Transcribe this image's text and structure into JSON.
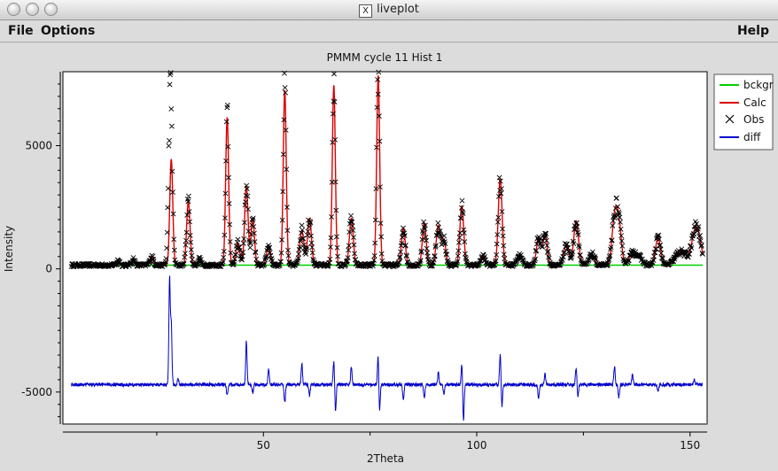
{
  "window": {
    "title": "liveplot",
    "icon": "x11-icon"
  },
  "menubar": {
    "file_label": "File",
    "options_label": "Options",
    "help_label": "Help"
  },
  "chart_data": {
    "type": "line",
    "title": "PMMM cycle 11 Hist 1",
    "xlabel": "2Theta",
    "ylabel": "Intensity",
    "xlim": [
      3,
      154
    ],
    "ylim": [
      -6300,
      8000
    ],
    "x_ticks": [
      {
        "value": 50,
        "label": "50"
      },
      {
        "value": 100,
        "label": "100"
      },
      {
        "value": 150,
        "label": "150"
      }
    ],
    "x_minor_ticks": [
      25,
      75,
      125
    ],
    "y_ticks": [
      {
        "value": 5000,
        "label": "5000"
      },
      {
        "value": 0,
        "label": "0"
      },
      {
        "value": -5000,
        "label": "-5000"
      }
    ],
    "grid": false,
    "legend_position": "right",
    "legend": [
      {
        "name": "bckgr",
        "color": "#00d000",
        "symbol": "line"
      },
      {
        "name": "Calc",
        "color": "#dd0000",
        "symbol": "line"
      },
      {
        "name": "Obs",
        "color": "#000000",
        "symbol": "x"
      },
      {
        "name": "diff",
        "color": "#0000cc",
        "symbol": "line"
      }
    ],
    "background": {
      "start": 5,
      "end": 153,
      "level": 150
    },
    "peaks": [
      {
        "x": 16.0,
        "h": 200,
        "w": 0.35
      },
      {
        "x": 19.5,
        "h": 250,
        "w": 0.35
      },
      {
        "x": 23.8,
        "h": 350,
        "w": 0.4
      },
      {
        "x": 28.4,
        "h": 4300,
        "w": 0.35
      },
      {
        "x": 32.4,
        "h": 2600,
        "w": 0.4
      },
      {
        "x": 35.0,
        "h": 260,
        "w": 0.35
      },
      {
        "x": 41.5,
        "h": 6000,
        "w": 0.35
      },
      {
        "x": 44.0,
        "h": 900,
        "w": 0.45
      },
      {
        "x": 46.0,
        "h": 3200,
        "w": 0.4
      },
      {
        "x": 47.5,
        "h": 1900,
        "w": 0.4
      },
      {
        "x": 51.2,
        "h": 800,
        "w": 0.45
      },
      {
        "x": 55.0,
        "h": 7100,
        "w": 0.35
      },
      {
        "x": 59.0,
        "h": 1400,
        "w": 0.5
      },
      {
        "x": 60.8,
        "h": 1900,
        "w": 0.45
      },
      {
        "x": 66.5,
        "h": 7300,
        "w": 0.35
      },
      {
        "x": 70.6,
        "h": 1900,
        "w": 0.45
      },
      {
        "x": 76.9,
        "h": 7700,
        "w": 0.35
      },
      {
        "x": 82.8,
        "h": 1500,
        "w": 0.45
      },
      {
        "x": 87.7,
        "h": 1700,
        "w": 0.45
      },
      {
        "x": 91.0,
        "h": 1600,
        "w": 0.5
      },
      {
        "x": 92.3,
        "h": 1000,
        "w": 0.45
      },
      {
        "x": 96.5,
        "h": 2400,
        "w": 0.45
      },
      {
        "x": 101.5,
        "h": 350,
        "w": 0.5
      },
      {
        "x": 105.5,
        "h": 3500,
        "w": 0.45
      },
      {
        "x": 110.0,
        "h": 400,
        "w": 0.6
      },
      {
        "x": 114.5,
        "h": 1100,
        "w": 0.5
      },
      {
        "x": 116.0,
        "h": 1300,
        "w": 0.5
      },
      {
        "x": 121.0,
        "h": 850,
        "w": 0.6
      },
      {
        "x": 123.3,
        "h": 1800,
        "w": 0.55
      },
      {
        "x": 127.0,
        "h": 450,
        "w": 0.6
      },
      {
        "x": 132.3,
        "h": 1800,
        "w": 0.6
      },
      {
        "x": 133.3,
        "h": 1600,
        "w": 0.6
      },
      {
        "x": 136.5,
        "h": 450,
        "w": 0.8
      },
      {
        "x": 138.0,
        "h": 300,
        "w": 0.8
      },
      {
        "x": 142.5,
        "h": 1100,
        "w": 0.6
      },
      {
        "x": 147.0,
        "h": 350,
        "w": 0.9
      },
      {
        "x": 148.5,
        "h": 400,
        "w": 0.9
      },
      {
        "x": 151.0,
        "h": 1000,
        "w": 0.8
      },
      {
        "x": 152.0,
        "h": 900,
        "w": 0.8
      }
    ],
    "obs_extra_peaks": [
      {
        "x": 28.0,
        "h": 4200,
        "w": 0.35
      }
    ],
    "diff_baseline": -4700,
    "diff_features": [
      {
        "x": 28.0,
        "dy": 4300
      },
      {
        "x": 28.4,
        "dy": 2400
      },
      {
        "x": 30.0,
        "dy": 250
      },
      {
        "x": 41.5,
        "dy": -450
      },
      {
        "x": 46.0,
        "dy": 1750
      },
      {
        "x": 47.5,
        "dy": -350
      },
      {
        "x": 51.2,
        "dy": 600
      },
      {
        "x": 55.0,
        "dy": -750
      },
      {
        "x": 59.0,
        "dy": 850
      },
      {
        "x": 60.8,
        "dy": -450
      },
      {
        "x": 66.5,
        "dy": 950
      },
      {
        "x": 66.9,
        "dy": -1100
      },
      {
        "x": 70.6,
        "dy": 700
      },
      {
        "x": 76.9,
        "dy": 1250
      },
      {
        "x": 77.2,
        "dy": -1150
      },
      {
        "x": 82.8,
        "dy": -650
      },
      {
        "x": 87.7,
        "dy": -550
      },
      {
        "x": 91.0,
        "dy": 500
      },
      {
        "x": 92.3,
        "dy": -400
      },
      {
        "x": 96.5,
        "dy": 850
      },
      {
        "x": 96.9,
        "dy": -1450
      },
      {
        "x": 105.5,
        "dy": 1250
      },
      {
        "x": 105.9,
        "dy": -900
      },
      {
        "x": 114.5,
        "dy": -550
      },
      {
        "x": 116.0,
        "dy": 450
      },
      {
        "x": 123.3,
        "dy": 700
      },
      {
        "x": 123.7,
        "dy": -500
      },
      {
        "x": 132.3,
        "dy": 750
      },
      {
        "x": 133.3,
        "dy": -500
      },
      {
        "x": 136.5,
        "dy": 400
      },
      {
        "x": 142.5,
        "dy": -300
      },
      {
        "x": 151.0,
        "dy": 250
      }
    ]
  }
}
